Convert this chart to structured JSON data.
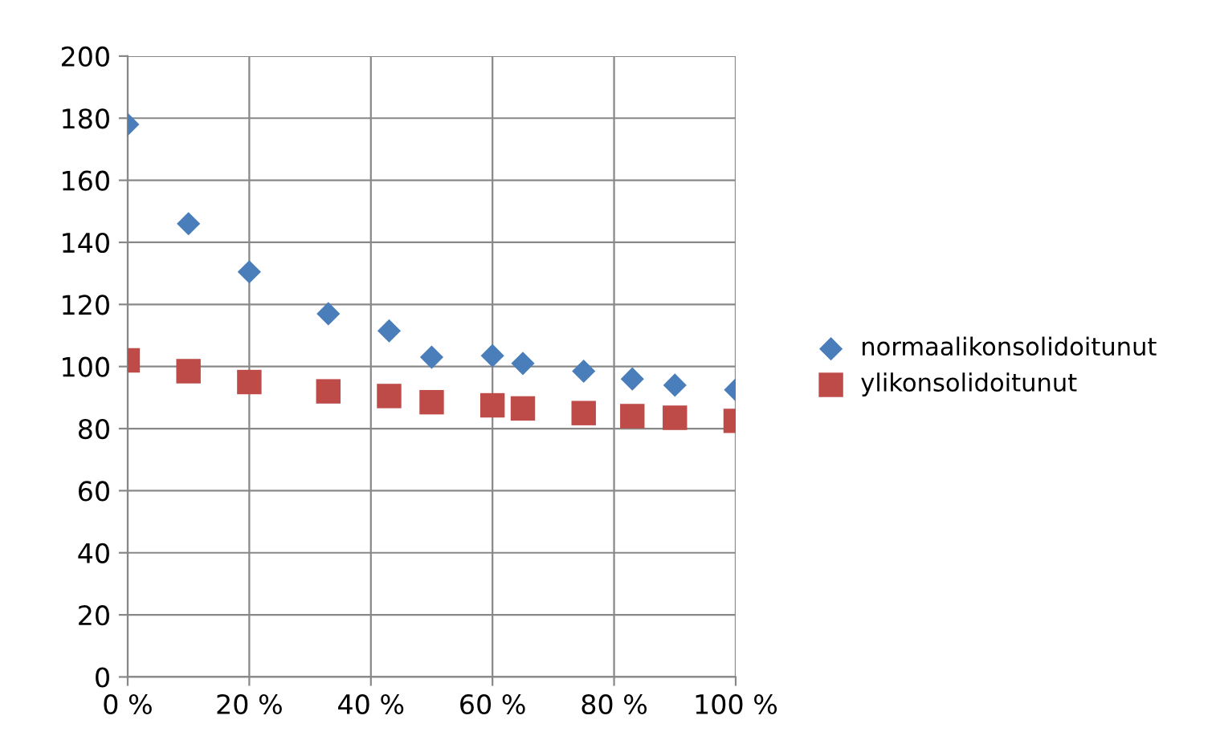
{
  "chart_data": {
    "type": "scatter",
    "x": [
      0,
      10,
      20,
      33,
      43,
      50,
      60,
      65,
      75,
      83,
      90,
      100
    ],
    "series": [
      {
        "name": "normaalikonsolidoitunut",
        "color": "#4a7ebb",
        "marker": "diamond",
        "values": [
          178,
          146,
          130.5,
          117,
          111.5,
          103,
          103.5,
          101,
          98.5,
          96,
          94,
          92.5
        ]
      },
      {
        "name": "ylikonsolidoitunut",
        "color": "#be4b48",
        "marker": "square",
        "values": [
          102,
          98.5,
          95,
          92,
          90.5,
          88.5,
          87.5,
          86.5,
          85,
          84,
          83.5,
          82.5
        ]
      }
    ],
    "xlim": [
      0,
      100
    ],
    "xticks": [
      {
        "value": 0,
        "label": "0 %"
      },
      {
        "value": 20,
        "label": "20 %"
      },
      {
        "value": 40,
        "label": "40 %"
      },
      {
        "value": 60,
        "label": "60 %"
      },
      {
        "value": 80,
        "label": "80 %"
      },
      {
        "value": 100,
        "label": "100 %"
      }
    ],
    "ylim": [
      0,
      200
    ],
    "yticks": [
      0,
      20,
      40,
      60,
      80,
      100,
      120,
      140,
      160,
      180,
      200
    ],
    "grid": true,
    "legend": "right"
  }
}
